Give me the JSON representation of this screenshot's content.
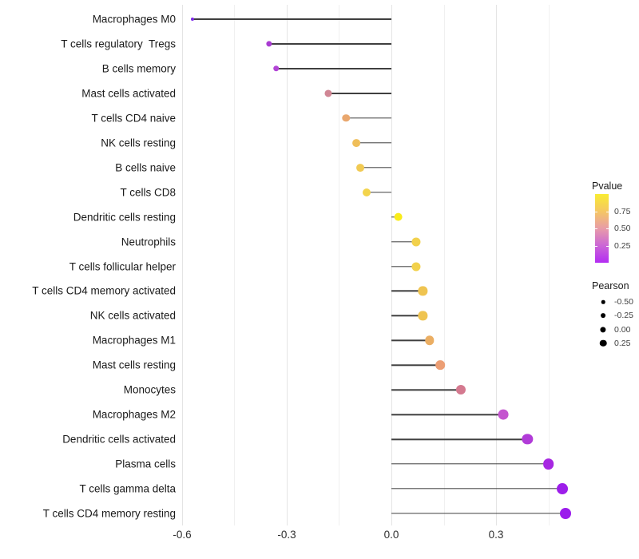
{
  "chart_data": {
    "type": "scatter",
    "style": "lollipop",
    "title": "",
    "xlabel": "",
    "ylabel": "",
    "grid": "on",
    "legend_position": "right",
    "x_axis": {
      "range": [
        -0.66,
        0.52
      ],
      "ticks": [
        -0.6,
        -0.3,
        0.0,
        0.3
      ],
      "tick_labels": [
        "-0.6",
        "-0.3",
        "0.0",
        "0.3"
      ],
      "minor_gridlines": [
        -0.45,
        -0.15,
        0.15,
        0.45
      ]
    },
    "categories": [
      "Macrophages M0",
      "T cells regulatory  Tregs",
      "B cells memory",
      "Mast cells activated",
      "T cells CD4 naive",
      "NK cells resting",
      "B cells naive",
      "T cells CD8",
      "Dendritic cells resting",
      "Neutrophils",
      "T cells follicular helper",
      "T cells CD4 memory activated",
      "NK cells activated",
      "Macrophages M1",
      "Mast cells resting",
      "Monocytes",
      "Macrophages M2",
      "Dendritic cells activated",
      "Plasma cells",
      "T cells gamma delta",
      "T cells CD4 memory resting"
    ],
    "points": [
      {
        "label": "Macrophages M0",
        "pearson": -0.57,
        "pvalue": 0.02,
        "color": "#7c2ae8"
      },
      {
        "label": "T cells regulatory  Tregs",
        "pearson": -0.35,
        "pvalue": 0.12,
        "color": "#a93bd2"
      },
      {
        "label": "B cells memory",
        "pearson": -0.33,
        "pvalue": 0.15,
        "color": "#b244d6"
      },
      {
        "label": "Mast cells activated",
        "pearson": -0.18,
        "pvalue": 0.47,
        "color": "#d08694"
      },
      {
        "label": "T cells CD4 naive",
        "pearson": -0.13,
        "pvalue": 0.62,
        "color": "#e9a76e"
      },
      {
        "label": "NK cells resting",
        "pearson": -0.1,
        "pvalue": 0.7,
        "color": "#efbe59"
      },
      {
        "label": "B cells naive",
        "pearson": -0.09,
        "pvalue": 0.73,
        "color": "#f1ca53"
      },
      {
        "label": "T cells CD8",
        "pearson": -0.07,
        "pvalue": 0.78,
        "color": "#f3d44c"
      },
      {
        "label": "Dendritic cells resting",
        "pearson": 0.02,
        "pvalue": 0.93,
        "color": "#f9ec1b"
      },
      {
        "label": "Neutrophils",
        "pearson": 0.07,
        "pvalue": 0.77,
        "color": "#f2d14c"
      },
      {
        "label": "T cells follicular helper",
        "pearson": 0.07,
        "pvalue": 0.77,
        "color": "#f2d14c"
      },
      {
        "label": "T cells CD4 memory activated",
        "pearson": 0.09,
        "pvalue": 0.72,
        "color": "#efc451"
      },
      {
        "label": "NK cells activated",
        "pearson": 0.09,
        "pvalue": 0.72,
        "color": "#efc451"
      },
      {
        "label": "Macrophages M1",
        "pearson": 0.11,
        "pvalue": 0.66,
        "color": "#ebae63"
      },
      {
        "label": "Mast cells resting",
        "pearson": 0.14,
        "pvalue": 0.58,
        "color": "#ec9e74"
      },
      {
        "label": "Monocytes",
        "pearson": 0.2,
        "pvalue": 0.44,
        "color": "#d4798f"
      },
      {
        "label": "Macrophages M2",
        "pearson": 0.32,
        "pvalue": 0.27,
        "color": "#c455cf"
      },
      {
        "label": "Dendritic cells activated",
        "pearson": 0.39,
        "pvalue": 0.16,
        "color": "#b13bd8"
      },
      {
        "label": "Plasma cells",
        "pearson": 0.45,
        "pvalue": 0.09,
        "color": "#a727e2"
      },
      {
        "label": "T cells gamma delta",
        "pearson": 0.49,
        "pvalue": 0.05,
        "color": "#9d1eea"
      },
      {
        "label": "T cells CD4 memory resting",
        "pearson": 0.5,
        "pvalue": 0.05,
        "color": "#9b1cec"
      }
    ],
    "stick_color": "#3f3f3f"
  },
  "legend": {
    "pvalue": {
      "title": "Pvalue",
      "scale_range": [
        0,
        1
      ],
      "tick_labels": [
        "0.75",
        "0.50",
        "0.25"
      ],
      "tick_values": [
        0.75,
        0.5,
        0.25
      ],
      "gradient_stops": [
        "#f9ec32",
        "#f5c763",
        "#e89ca8",
        "#cb66d6",
        "#b32cf2"
      ]
    },
    "pearson": {
      "title": "Pearson",
      "items": [
        {
          "label": "-0.50",
          "value": -0.5
        },
        {
          "label": "-0.25",
          "value": -0.25
        },
        {
          "label": "0.00",
          "value": 0.0
        },
        {
          "label": "0.25",
          "value": 0.25
        }
      ],
      "dot_color": "#000000"
    }
  }
}
